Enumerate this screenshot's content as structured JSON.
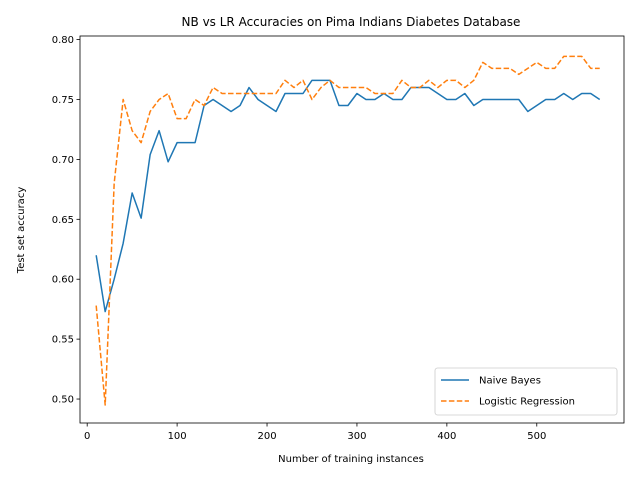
{
  "chart_data": {
    "type": "line",
    "title": "NB vs LR Accuracies on Pima Indians Diabetes Database",
    "xlabel": "Number of training instances",
    "ylabel": "Test set accuracy",
    "xlim": [
      -8,
      597
    ],
    "ylim": [
      0.48,
      0.803
    ],
    "xticks": [
      0,
      100,
      200,
      300,
      400,
      500
    ],
    "xtick_labels": [
      "0",
      "100",
      "200",
      "300",
      "400",
      "500"
    ],
    "yticks": [
      0.5,
      0.55,
      0.6,
      0.65,
      0.7,
      0.75,
      0.8
    ],
    "ytick_labels": [
      "0.50",
      "0.55",
      "0.60",
      "0.65",
      "0.70",
      "0.75",
      "0.80"
    ],
    "grid": false,
    "legend_position": "lower right",
    "x": [
      10,
      20,
      30,
      40,
      50,
      60,
      70,
      80,
      90,
      100,
      110,
      120,
      130,
      140,
      150,
      160,
      170,
      180,
      190,
      200,
      210,
      220,
      230,
      240,
      250,
      260,
      270,
      280,
      290,
      300,
      310,
      320,
      330,
      340,
      350,
      360,
      370,
      380,
      390,
      400,
      410,
      420,
      430,
      440,
      450,
      460,
      470,
      480,
      490,
      500,
      510,
      520,
      530,
      540,
      550,
      560,
      570
    ],
    "series": [
      {
        "name": "Naive Bayes",
        "color": "#1f77b4",
        "style": "solid",
        "values": [
          0.62,
          0.573,
          0.6,
          0.63,
          0.672,
          0.651,
          0.704,
          0.724,
          0.698,
          0.714,
          0.714,
          0.714,
          0.745,
          0.75,
          0.745,
          0.74,
          0.745,
          0.76,
          0.75,
          0.745,
          0.74,
          0.755,
          0.755,
          0.755,
          0.766,
          0.766,
          0.766,
          0.745,
          0.745,
          0.755,
          0.75,
          0.75,
          0.755,
          0.75,
          0.75,
          0.76,
          0.76,
          0.76,
          0.755,
          0.75,
          0.75,
          0.755,
          0.745,
          0.75,
          0.75,
          0.75,
          0.75,
          0.75,
          0.74,
          0.745,
          0.75,
          0.75,
          0.755,
          0.75,
          0.755,
          0.755,
          0.75
        ]
      },
      {
        "name": "Logistic Regression",
        "color": "#ff7f0e",
        "style": "dashed",
        "values": [
          0.578,
          0.495,
          0.68,
          0.75,
          0.724,
          0.714,
          0.74,
          0.75,
          0.755,
          0.734,
          0.734,
          0.75,
          0.745,
          0.76,
          0.755,
          0.755,
          0.755,
          0.755,
          0.755,
          0.755,
          0.755,
          0.766,
          0.76,
          0.766,
          0.75,
          0.76,
          0.766,
          0.76,
          0.76,
          0.76,
          0.76,
          0.755,
          0.755,
          0.755,
          0.766,
          0.76,
          0.76,
          0.766,
          0.76,
          0.766,
          0.766,
          0.76,
          0.766,
          0.781,
          0.776,
          0.776,
          0.776,
          0.771,
          0.776,
          0.781,
          0.776,
          0.776,
          0.786,
          0.786,
          0.786,
          0.776,
          0.776
        ]
      }
    ]
  }
}
